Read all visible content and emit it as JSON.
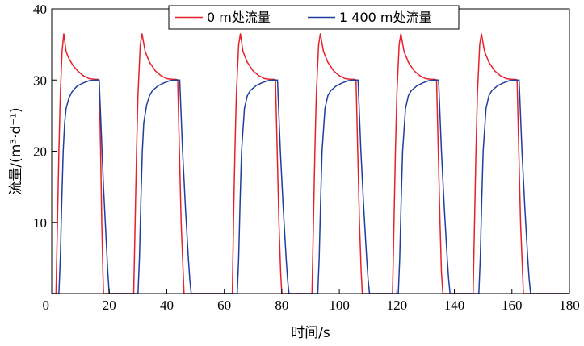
{
  "chart_data": {
    "type": "line",
    "xlabel": "时间/s",
    "ylabel": "流量/(m³·d⁻¹)",
    "xlim": [
      0,
      180
    ],
    "ylim": [
      0,
      40
    ],
    "xticks": [
      0,
      20,
      40,
      60,
      80,
      100,
      120,
      140,
      160,
      180
    ],
    "yticks": [
      10,
      20,
      30,
      40
    ],
    "origin_label": "0",
    "grid": false,
    "legend_position": "top-right",
    "series": [
      {
        "name": "0 m处流量",
        "color": "#e8202a",
        "x": [
          0,
          1.5,
          2,
          2.5,
          3,
          3.6,
          4.2,
          5,
          6,
          7.5,
          9,
          11,
          13,
          15,
          16,
          16.5,
          17,
          17.4,
          17.8,
          18,
          28.5,
          29,
          29.5,
          30,
          30.8,
          31.4,
          32.5,
          34,
          36,
          38,
          40,
          42,
          43.2,
          43.8,
          44.4,
          45,
          45.7,
          46,
          62.8,
          63.2,
          63.7,
          64.2,
          65,
          65.6,
          66.5,
          68,
          70,
          72,
          74,
          76,
          77.2,
          77.8,
          78.4,
          79,
          79.6,
          80,
          90.5,
          91,
          91.5,
          92,
          92.8,
          93.4,
          94.5,
          96,
          98,
          100,
          102,
          104,
          105.2,
          105.8,
          106.4,
          107,
          107.6,
          108,
          118.5,
          119,
          119.5,
          120,
          120.8,
          121.4,
          122.5,
          124,
          126,
          128,
          130,
          132,
          133.2,
          133.8,
          134.4,
          135,
          135.5,
          136,
          146.5,
          147,
          147.5,
          148,
          148.8,
          149.4,
          150.5,
          152,
          154,
          156,
          158,
          160,
          161.2,
          161.8,
          162.4,
          163,
          163.7,
          164,
          180
        ],
        "y": [
          0,
          0,
          10,
          20,
          28,
          34,
          36.5,
          34,
          33,
          32,
          31.3,
          30.6,
          30.2,
          30.1,
          30.1,
          30,
          20,
          10,
          3,
          0,
          0,
          10,
          20,
          28,
          35,
          36.5,
          34,
          32.5,
          31.3,
          30.6,
          30.2,
          30.1,
          30.1,
          30,
          20,
          10,
          3,
          0,
          0,
          10,
          20,
          28,
          35,
          36.5,
          34,
          32.5,
          31.3,
          30.6,
          30.2,
          30.1,
          30.1,
          30,
          20,
          10,
          3,
          0,
          0,
          10,
          20,
          28,
          35,
          36.5,
          34,
          32.5,
          31.3,
          30.6,
          30.2,
          30.1,
          30.1,
          30,
          20,
          10,
          3,
          0,
          0,
          10,
          20,
          28,
          35,
          36.5,
          34,
          32.5,
          31.3,
          30.6,
          30.2,
          30.1,
          30.1,
          30,
          20,
          10,
          3,
          0,
          0,
          10,
          20,
          28,
          35,
          36.5,
          34,
          32.5,
          31.3,
          30.6,
          30.2,
          30.1,
          30.1,
          30,
          20,
          10,
          3,
          0,
          0
        ]
      },
      {
        "name": "1 400 m处流量",
        "color": "#1f3f9e",
        "x": [
          0,
          2.5,
          3,
          3.5,
          4,
          4.5,
          5,
          6,
          7,
          8,
          9,
          11,
          13,
          15,
          16,
          16.5,
          17,
          18,
          19,
          19.5,
          20,
          30,
          30.5,
          31,
          31.5,
          32,
          33,
          34,
          35,
          37,
          39,
          41,
          43,
          44,
          44.5,
          45,
          45.5,
          46.5,
          47.5,
          48,
          48.5,
          64.5,
          65,
          65.5,
          66,
          67,
          68,
          69,
          71,
          73,
          75,
          77,
          78,
          78.5,
          79,
          79.5,
          80.5,
          81.5,
          82,
          82.5,
          92.5,
          93,
          93.5,
          94,
          95,
          96,
          97,
          99,
          101,
          103,
          105,
          106,
          106.5,
          107,
          107.5,
          108.5,
          109.5,
          110,
          110.5,
          120.5,
          121,
          121.5,
          122,
          123,
          124,
          125,
          127,
          129,
          131,
          133,
          134,
          134.5,
          135,
          135.5,
          136.5,
          137.5,
          138,
          138.5,
          148.5,
          149,
          149.5,
          150,
          151,
          152,
          153,
          155,
          157,
          159,
          161,
          162,
          162.5,
          163,
          163.5,
          164.5,
          165.5,
          166,
          166.5,
          180
        ],
        "y": [
          0,
          0,
          5,
          13,
          20,
          24,
          26,
          27.5,
          28.3,
          28.8,
          29.2,
          29.6,
          29.9,
          30,
          30,
          30,
          25,
          15,
          7,
          3,
          0,
          0,
          5,
          13,
          20,
          24,
          26.5,
          27.8,
          28.5,
          29.2,
          29.6,
          29.9,
          30,
          30,
          30,
          25,
          20,
          12,
          5,
          2,
          0,
          0,
          5,
          13,
          20,
          26,
          27.8,
          28.5,
          29.2,
          29.6,
          29.9,
          30,
          30,
          30,
          25,
          20,
          12,
          5,
          2,
          0,
          0,
          5,
          13,
          20,
          26,
          27.8,
          28.5,
          29.2,
          29.6,
          29.9,
          30,
          30,
          30,
          25,
          20,
          12,
          5,
          2,
          0,
          0,
          5,
          13,
          20,
          26,
          27.8,
          28.5,
          29.2,
          29.6,
          29.9,
          30,
          30,
          30,
          25,
          20,
          12,
          5,
          2,
          0,
          0,
          5,
          13,
          20,
          26,
          27.8,
          28.5,
          29.2,
          29.6,
          29.9,
          30,
          30,
          30,
          25,
          20,
          12,
          5,
          2,
          0,
          0
        ]
      }
    ]
  }
}
